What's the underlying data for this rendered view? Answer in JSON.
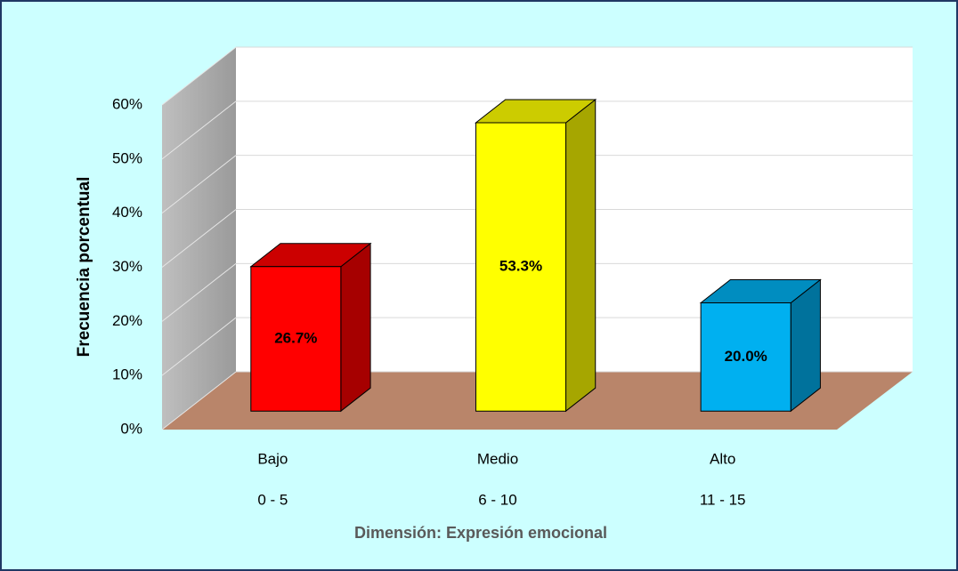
{
  "chart_data": {
    "type": "bar3d",
    "categories": [
      [
        "Bajo",
        "0 - 5"
      ],
      [
        "Medio",
        "6 - 10"
      ],
      [
        "Alto",
        "11 - 15"
      ]
    ],
    "values": [
      26.7,
      53.3,
      20.0
    ],
    "value_labels": [
      "26.7%",
      "53.3%",
      "20.0%"
    ],
    "colors": [
      "#ff0000",
      "#ffff00",
      "#00b0f0"
    ],
    "ylabel": "Frecuencia porcentual",
    "xlabel": "Dimensión: Expresión emocional",
    "ylim": [
      0,
      60
    ],
    "yticks": [
      {
        "value": 0,
        "label": "0%"
      },
      {
        "value": 10,
        "label": "10%"
      },
      {
        "value": 20,
        "label": "20%"
      },
      {
        "value": 30,
        "label": "30%"
      },
      {
        "value": 40,
        "label": "40%"
      },
      {
        "value": 50,
        "label": "50%"
      },
      {
        "value": 60,
        "label": "60%"
      }
    ],
    "grid": true
  }
}
